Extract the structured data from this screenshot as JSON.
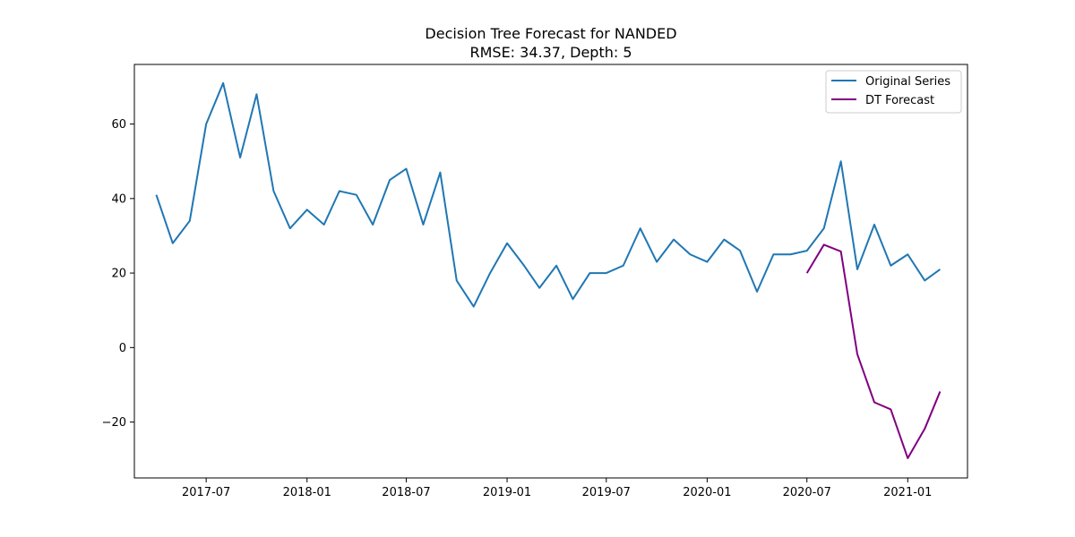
{
  "chart_data": {
    "type": "line",
    "title": "Decision Tree Forecast for NANDED",
    "subtitle": "RMSE: 34.37, Depth: 5",
    "xlabel": "",
    "ylabel": "",
    "xlim": [
      "2017-02-20",
      "2021-04-20"
    ],
    "ylim": [
      -35,
      76
    ],
    "x_tick_labels": [
      "2017-07",
      "2018-01",
      "2018-07",
      "2019-01",
      "2019-07",
      "2020-01",
      "2020-07",
      "2021-01"
    ],
    "x_ticks": [
      "2017-07-01",
      "2018-01-01",
      "2018-07-01",
      "2019-01-01",
      "2019-07-01",
      "2020-01-01",
      "2020-07-01",
      "2021-01-01"
    ],
    "y_ticks": [
      -20,
      0,
      20,
      40,
      60
    ],
    "y_tick_labels": [
      "−20",
      "0",
      "20",
      "40",
      "60"
    ],
    "grid": false,
    "legend_position": "top-right",
    "series": [
      {
        "name": "Original Series",
        "color": "#1f77b4",
        "x": [
          "2017-04-01",
          "2017-05-01",
          "2017-06-01",
          "2017-07-01",
          "2017-08-01",
          "2017-09-01",
          "2017-10-01",
          "2017-11-01",
          "2017-12-01",
          "2018-01-01",
          "2018-02-01",
          "2018-03-01",
          "2018-04-01",
          "2018-05-01",
          "2018-06-01",
          "2018-07-01",
          "2018-08-01",
          "2018-09-01",
          "2018-10-01",
          "2018-11-01",
          "2018-12-01",
          "2019-01-01",
          "2019-02-01",
          "2019-03-01",
          "2019-04-01",
          "2019-05-01",
          "2019-06-01",
          "2019-07-01",
          "2019-08-01",
          "2019-09-01",
          "2019-10-01",
          "2019-11-01",
          "2019-12-01",
          "2020-01-01",
          "2020-02-01",
          "2020-03-01",
          "2020-04-01",
          "2020-05-01",
          "2020-06-01",
          "2020-07-01",
          "2020-08-01",
          "2020-09-01",
          "2020-10-01",
          "2020-11-01",
          "2020-12-01",
          "2021-01-01",
          "2021-02-01",
          "2021-03-01"
        ],
        "y": [
          41,
          28,
          34,
          60,
          71,
          51,
          68,
          42,
          32,
          37,
          33,
          42,
          41,
          33,
          45,
          48,
          33,
          47,
          18,
          11,
          20,
          28,
          22,
          16,
          22,
          13,
          20,
          20,
          22,
          32,
          23,
          29,
          25,
          23,
          29,
          26,
          15,
          25,
          25,
          26,
          32,
          50,
          21,
          33,
          22,
          25,
          18,
          21
        ]
      },
      {
        "name": "DT Forecast",
        "color": "#800080",
        "x": [
          "2020-07-01",
          "2020-08-01",
          "2020-09-01",
          "2020-10-01",
          "2020-11-01",
          "2020-12-01",
          "2021-01-01",
          "2021-02-01",
          "2021-03-01"
        ],
        "y": [
          20,
          27.6,
          25.8,
          -1.8,
          -14.7,
          -16.6,
          -29.7,
          -21.8,
          -11.8
        ]
      }
    ]
  }
}
